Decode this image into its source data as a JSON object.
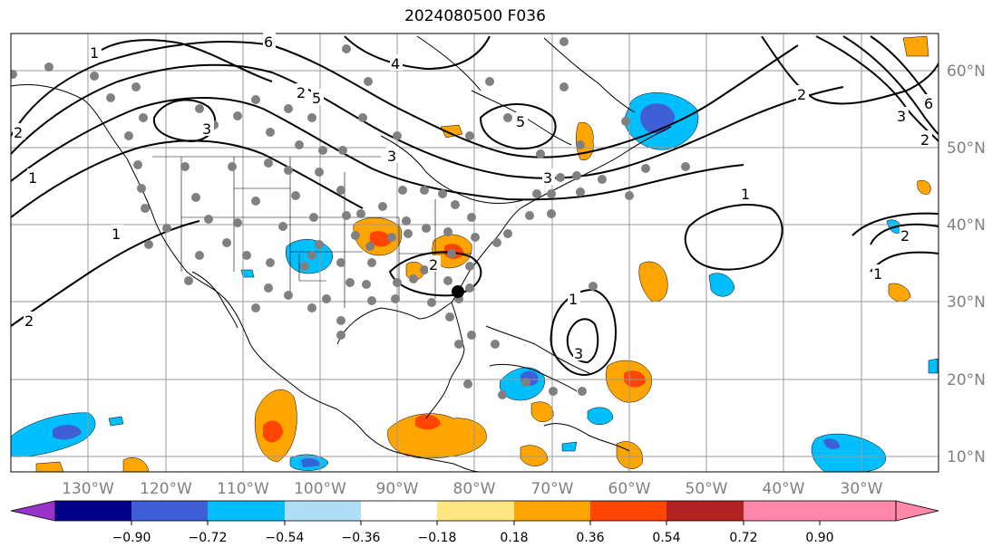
{
  "title": "2024080500 F036",
  "map": {
    "lon_labels": [
      "130°W",
      "120°W",
      "110°W",
      "100°W",
      "90°W",
      "80°W",
      "70°W",
      "60°W",
      "50°W",
      "40°W",
      "30°W"
    ],
    "lat_labels": [
      "60°N",
      "50°N",
      "40°N",
      "30°N",
      "20°N",
      "10°N"
    ],
    "gridline_color": "#999999",
    "coastline_color": "#000000",
    "station_marker_color": "#808080"
  },
  "contour_labels": [
    "6",
    "5",
    "4",
    "3",
    "2",
    "1",
    "2",
    "1",
    "5",
    "3",
    "2",
    "6",
    "3",
    "2",
    "1",
    "2",
    "1",
    "1",
    "3",
    "1",
    "2",
    "2",
    "3"
  ],
  "colorbar": {
    "ticks": [
      "−0.90",
      "−0.72",
      "−0.54",
      "−0.36",
      "−0.18",
      "0.18",
      "0.36",
      "0.54",
      "0.72",
      "0.90"
    ],
    "colors": [
      "#9933cc",
      "#00008b",
      "#3f5fd6",
      "#00bfff",
      "#aedff7",
      "#ffffff",
      "#ffe680",
      "#ffa500",
      "#ff4500",
      "#b22222",
      "#ff88aa"
    ]
  }
}
